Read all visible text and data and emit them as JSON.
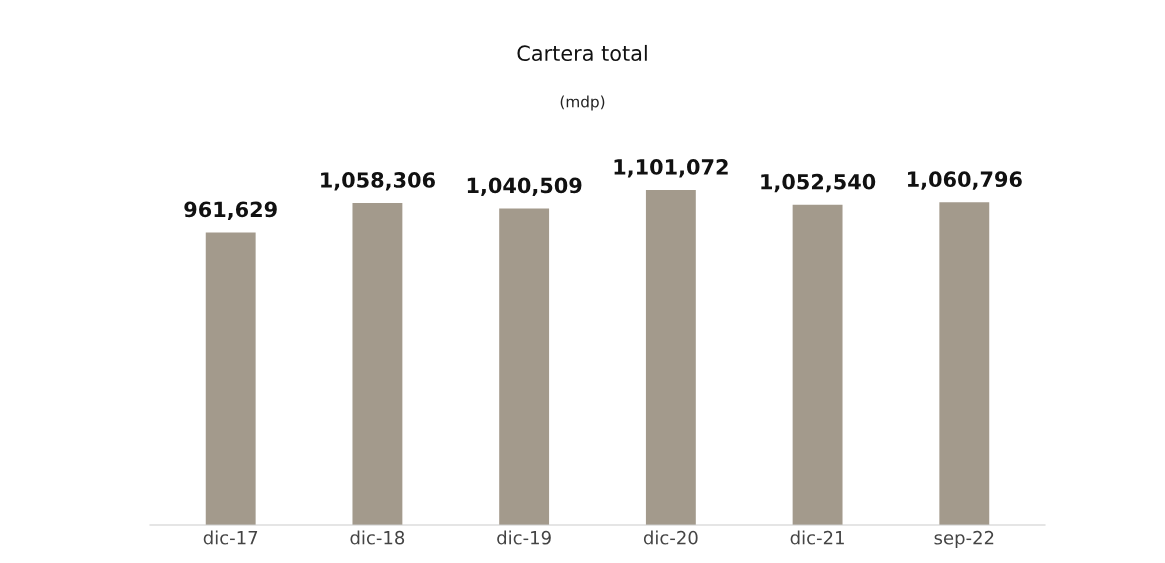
{
  "chart_data": {
    "type": "bar",
    "title": "Cartera total",
    "subtitle": "(mdp)",
    "categories": [
      "dic-17",
      "dic-18",
      "dic-19",
      "dic-20",
      "dic-21",
      "sep-22"
    ],
    "values": [
      961629,
      1058306,
      1040509,
      1101072,
      1052540,
      1060796
    ],
    "value_labels": [
      "961,629",
      "1,058,306",
      "1,040,509",
      "1,101,072",
      "1,052,540",
      "1,060,796"
    ],
    "color": "#a39a8c",
    "grid": false,
    "legend": false
  }
}
